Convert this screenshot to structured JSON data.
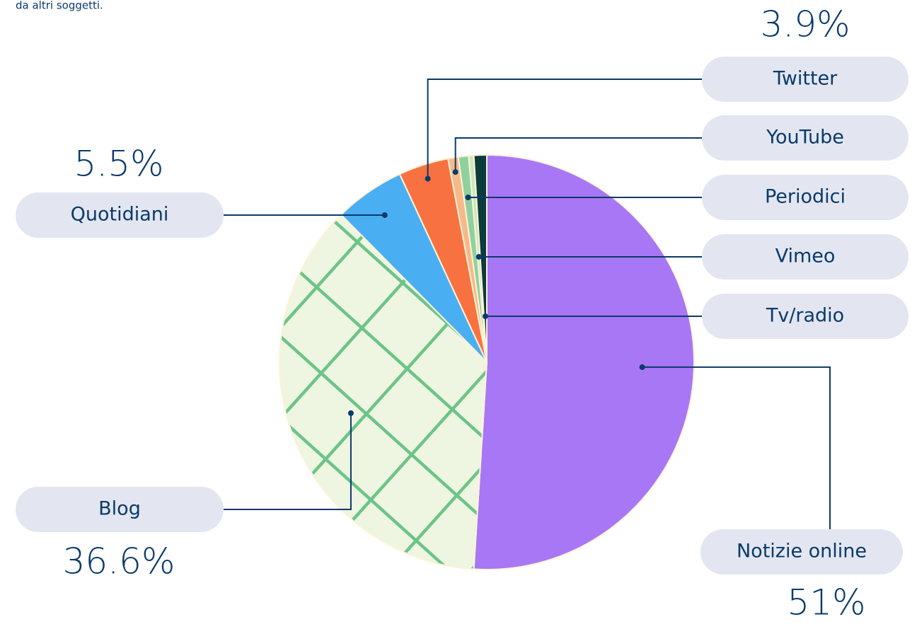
{
  "intro_text": "da altri soggetti.",
  "chart_data": {
    "type": "pie",
    "categories": [
      "Notizie online",
      "Blog",
      "Quotidiani",
      "Twitter",
      "YouTube",
      "Periodici",
      "Vimeo",
      "Tv/radio"
    ],
    "values": [
      51,
      36.6,
      5.5,
      3.9,
      0.8,
      0.8,
      0.4,
      1.0
    ],
    "value_labels": [
      "51%",
      "36.6%",
      "5.5%",
      "3.9%",
      null,
      null,
      null,
      null
    ],
    "colors": [
      "#a877f5",
      "#eef5e0",
      "#4aaef2",
      "#f77240",
      "#f7b98a",
      "#8fd19e",
      "#c9e8c0",
      "#0b3b3b"
    ]
  }
}
